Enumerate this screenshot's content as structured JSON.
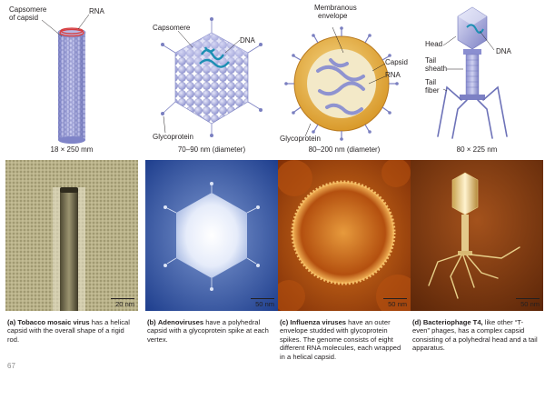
{
  "panels": [
    {
      "labels": [
        "Capsomere",
        "of capsid",
        "RNA"
      ],
      "dimension": "18 × 250 mm",
      "scale": "20 nm",
      "caption_letter": "(a)",
      "caption_title": "Tobacco mosaic virus",
      "caption_body": "has a helical capsid with the overall shape of a rigid rod."
    },
    {
      "labels": [
        "Capsomere",
        "DNA",
        "Glycoprotein"
      ],
      "dimension": "70–90 nm (diameter)",
      "scale": "50 nm",
      "caption_letter": "(b)",
      "caption_title": "Adenoviruses",
      "caption_body": "have a polyhedral capsid with a glycoprotein spike at each vertex."
    },
    {
      "labels": [
        "Membranous",
        "envelope",
        "Capsid",
        "RNA",
        "Glycoprotein"
      ],
      "dimension": "80–200 nm (diameter)",
      "scale": "50 nm",
      "caption_letter": "(c)",
      "caption_title": "Influenza viruses",
      "caption_body": "have an outer envelope studded with glycoprotein spikes. The genome consists of eight different RNA molecules, each wrapped in a helical capsid."
    },
    {
      "labels": [
        "Head",
        "DNA",
        "Tail",
        "sheath",
        "Tail",
        "fiber"
      ],
      "dimension": "80 × 225 nm",
      "scale": "50 nm",
      "caption_letter": "(d)",
      "caption_title": "Bacteriophage T4,",
      "caption_body": "like other “T-even” phages, has a complex capsid consisting of a polyhedral head and a tail apparatus."
    }
  ],
  "page_number": "67"
}
